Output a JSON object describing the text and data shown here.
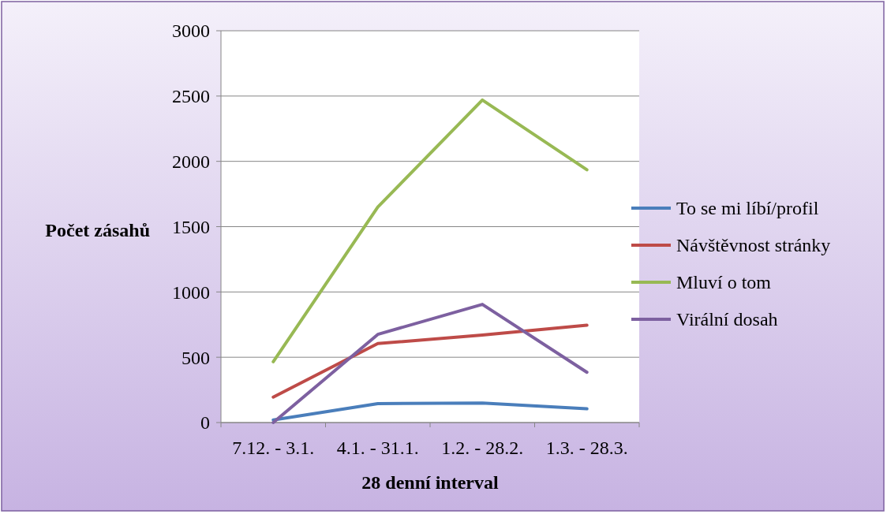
{
  "chart_data": {
    "type": "line",
    "ylabel": "Počet zásahů",
    "xlabel": "28 denní interval",
    "categories": [
      "7.12. - 3.1.",
      "4.1. - 31.1.",
      "1.2. - 28.2.",
      "1.3. - 28.3."
    ],
    "series": [
      {
        "name": "To se mi líbí/profil",
        "color": "#4a7ebb",
        "values": [
          20,
          145,
          150,
          105
        ]
      },
      {
        "name": "Návštěvnost stránky",
        "color": "#be4b48",
        "values": [
          195,
          605,
          670,
          745
        ]
      },
      {
        "name": "Mluví o tom",
        "color": "#98b954",
        "values": [
          465,
          1650,
          2470,
          1935
        ]
      },
      {
        "name": "Virální dosah",
        "color": "#7d60a0",
        "values": [
          0,
          675,
          905,
          385
        ]
      }
    ],
    "ylim": [
      0,
      3000
    ],
    "yticks": [
      0,
      500,
      1000,
      1500,
      2000,
      2500,
      3000
    ],
    "grid": "y",
    "legend": "right",
    "marker": "none",
    "line_style": "solid"
  }
}
